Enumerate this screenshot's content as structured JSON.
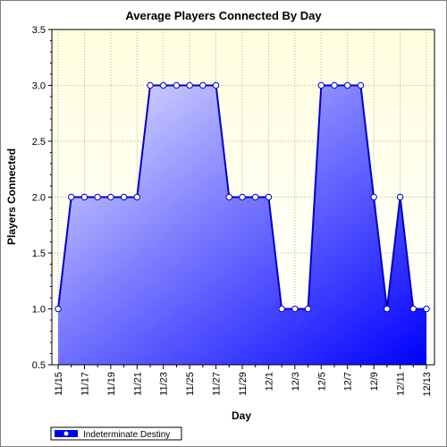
{
  "chart_data": {
    "type": "area",
    "title": "Average Players Connected By Day",
    "xlabel": "Day",
    "ylabel": "Players Connected",
    "ylim": [
      0.5,
      3.5
    ],
    "yticks": [
      "0.5",
      "1.0",
      "1.5",
      "2.0",
      "2.5",
      "3.0",
      "3.5"
    ],
    "xtick_labels": [
      "11/15",
      "11/17",
      "11/19",
      "11/21",
      "11/23",
      "11/25",
      "11/27",
      "11/29",
      "12/1",
      "12/3",
      "12/5",
      "12/7",
      "12/9",
      "12/11",
      "12/13"
    ],
    "categories": [
      "11/15",
      "11/16",
      "11/17",
      "11/18",
      "11/19",
      "11/20",
      "11/21",
      "11/22",
      "11/23",
      "11/24",
      "11/25",
      "11/26",
      "11/27",
      "11/28",
      "11/29",
      "11/30",
      "12/1",
      "12/2",
      "12/3",
      "12/4",
      "12/5",
      "12/6",
      "12/7",
      "12/8",
      "12/9",
      "12/10",
      "12/11",
      "12/12",
      "12/13"
    ],
    "series": [
      {
        "name": "Indeterminate Destiny",
        "values": [
          1,
          2,
          2,
          2,
          2,
          2,
          2,
          3,
          3,
          3,
          3,
          3,
          3,
          2,
          2,
          2,
          2,
          1,
          1,
          1,
          3,
          3,
          3,
          3,
          2,
          1,
          2,
          1,
          1
        ]
      }
    ],
    "grid": true,
    "legend_position": "bottom-left",
    "colors": {
      "plot_bg_top": "#ffffe0",
      "area_light": "#e0e0ff",
      "area_dark": "#0000ff",
      "line": "#0000cc",
      "marker_fill": "#ffffff"
    }
  }
}
